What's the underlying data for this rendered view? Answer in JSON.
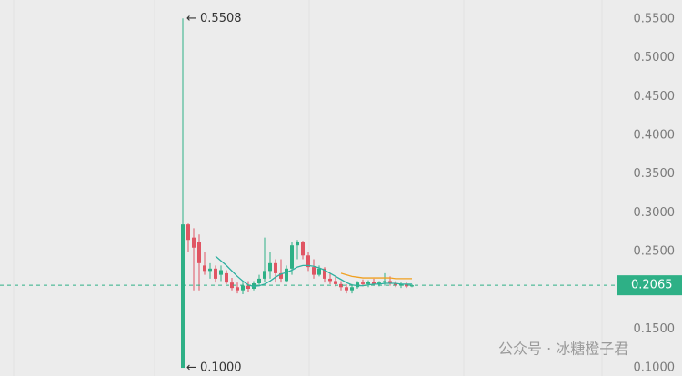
{
  "chart_data": {
    "type": "candlestick",
    "open": [
      0.1,
      0.285,
      0.268,
      0.262,
      0.232,
      0.225,
      0.228,
      0.22,
      0.222,
      0.21,
      0.204,
      0.2,
      0.206,
      0.202,
      0.209,
      0.215,
      0.225,
      0.235,
      0.222,
      0.212,
      0.228,
      0.258,
      0.262,
      0.245,
      0.23,
      0.22,
      0.228,
      0.215,
      0.212,
      0.208,
      0.204,
      0.2,
      0.204,
      0.21,
      0.208,
      0.211,
      0.208,
      0.21,
      0.212,
      0.209,
      0.206,
      0.208,
      0.205
    ],
    "high": [
      0.5508,
      0.286,
      0.28,
      0.272,
      0.25,
      0.235,
      0.232,
      0.232,
      0.226,
      0.216,
      0.21,
      0.21,
      0.212,
      0.212,
      0.22,
      0.268,
      0.25,
      0.24,
      0.24,
      0.232,
      0.262,
      0.265,
      0.264,
      0.25,
      0.24,
      0.232,
      0.23,
      0.222,
      0.218,
      0.212,
      0.208,
      0.208,
      0.212,
      0.214,
      0.213,
      0.215,
      0.212,
      0.222,
      0.218,
      0.212,
      0.21,
      0.21,
      0.208
    ],
    "low": [
      0.1,
      0.25,
      0.2,
      0.2,
      0.22,
      0.215,
      0.21,
      0.212,
      0.208,
      0.2,
      0.196,
      0.195,
      0.198,
      0.2,
      0.205,
      0.21,
      0.215,
      0.21,
      0.21,
      0.21,
      0.22,
      0.24,
      0.24,
      0.225,
      0.215,
      0.218,
      0.21,
      0.208,
      0.205,
      0.2,
      0.196,
      0.196,
      0.202,
      0.205,
      0.204,
      0.206,
      0.205,
      0.206,
      0.206,
      0.204,
      0.203,
      0.203,
      0.204
    ],
    "close": [
      0.285,
      0.265,
      0.255,
      0.235,
      0.225,
      0.228,
      0.215,
      0.226,
      0.21,
      0.203,
      0.2,
      0.206,
      0.202,
      0.209,
      0.215,
      0.225,
      0.235,
      0.222,
      0.215,
      0.228,
      0.258,
      0.262,
      0.245,
      0.23,
      0.22,
      0.228,
      0.215,
      0.212,
      0.208,
      0.204,
      0.2,
      0.204,
      0.21,
      0.208,
      0.211,
      0.208,
      0.21,
      0.212,
      0.209,
      0.206,
      0.208,
      0.205,
      0.2065
    ],
    "up_color": "#2eb086",
    "down_color": "#e05563",
    "series": [
      {
        "color": "#2eb0a0",
        "values": [
          null,
          null,
          null,
          null,
          null,
          null,
          0.244,
          0.238,
          0.232,
          0.225,
          0.218,
          0.212,
          0.207,
          0.205,
          0.206,
          0.208,
          0.212,
          0.217,
          0.221,
          0.223,
          0.226,
          0.23,
          0.232,
          0.232,
          0.231,
          0.229,
          0.226,
          0.222,
          0.218,
          0.214,
          0.21,
          0.207,
          0.206,
          0.206,
          0.207,
          0.208,
          0.208,
          0.209,
          0.209,
          0.209,
          0.208,
          0.208,
          0.208
        ]
      },
      {
        "color": "#f0a020",
        "values": [
          null,
          null,
          null,
          null,
          null,
          null,
          null,
          null,
          null,
          null,
          null,
          null,
          null,
          null,
          null,
          null,
          null,
          null,
          null,
          null,
          null,
          null,
          null,
          null,
          null,
          null,
          null,
          null,
          null,
          0.222,
          0.22,
          0.218,
          0.217,
          0.216,
          0.216,
          0.216,
          0.216,
          0.216,
          0.216,
          0.215,
          0.215,
          0.215,
          0.215
        ]
      }
    ],
    "ylim": [
      0.0895,
      0.5746
    ],
    "yticks": [
      {
        "value": 0.1,
        "label": "0.1000"
      },
      {
        "value": 0.15,
        "label": "0.1500"
      },
      {
        "value": 0.25,
        "label": "0.2500"
      },
      {
        "value": 0.3,
        "label": "0.3000"
      },
      {
        "value": 0.35,
        "label": "0.3500"
      },
      {
        "value": 0.4,
        "label": "0.4000"
      },
      {
        "value": 0.45,
        "label": "0.4500"
      },
      {
        "value": 0.5,
        "label": "0.5000"
      },
      {
        "value": 0.55,
        "label": "0.5500"
      }
    ],
    "last_price": {
      "value": 0.2065,
      "label": "0.2065"
    },
    "annotations": [
      {
        "value": 0.5508,
        "text": "← 0.5508"
      },
      {
        "value": 0.1,
        "text": "← 0.1000"
      }
    ],
    "watermark": "公众号 · 冰糖橙子君"
  }
}
